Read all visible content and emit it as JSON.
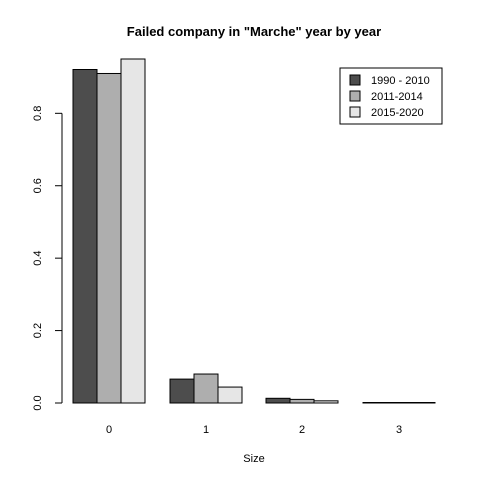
{
  "chart_data": {
    "type": "bar",
    "title": "Failed company in \"Marche\" year by year",
    "xlabel": "Size",
    "ylabel": "",
    "categories": [
      "0",
      "1",
      "2",
      "3"
    ],
    "series": [
      {
        "name": "1990 - 2010",
        "color": "#4d4d4d",
        "values": [
          0.921,
          0.066,
          0.013,
          0.001
        ]
      },
      {
        "name": "2011-2014",
        "color": "#aeaeae",
        "values": [
          0.91,
          0.08,
          0.01,
          0.0
        ]
      },
      {
        "name": "2015-2020",
        "color": "#e6e6e6",
        "values": [
          0.95,
          0.044,
          0.006,
          0.0
        ]
      }
    ],
    "ylim": [
      0,
      0.95
    ],
    "yticks": [
      0.0,
      0.2,
      0.4,
      0.6,
      0.8
    ],
    "ytick_labels": [
      "0.0",
      "0.2",
      "0.4",
      "0.6",
      "0.8"
    ],
    "grid": false,
    "legend_position": "top-right"
  }
}
